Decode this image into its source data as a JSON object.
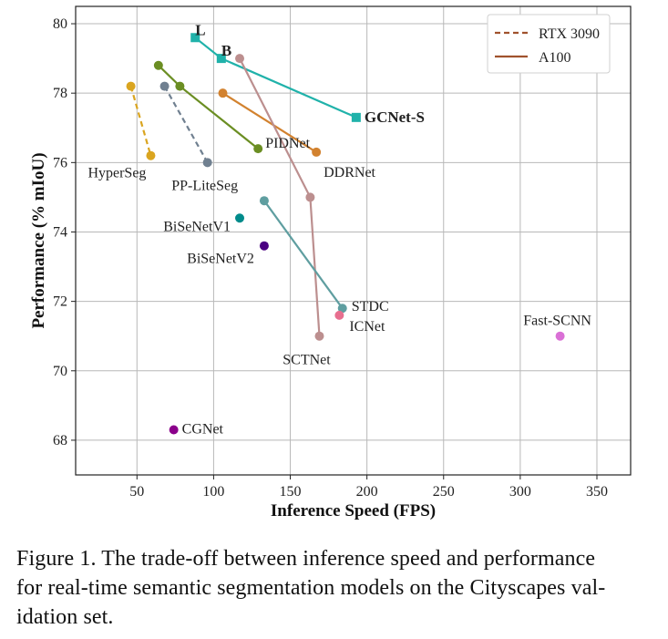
{
  "chart_data": {
    "type": "scatter",
    "title": "",
    "xlabel": "Inference Speed (FPS)",
    "ylabel": "Performance (% mIoU)",
    "xlim": [
      10,
      372
    ],
    "ylim": [
      67.0,
      80.5
    ],
    "xticks": [
      50,
      100,
      150,
      200,
      250,
      300,
      350
    ],
    "yticks": [
      68,
      70,
      72,
      74,
      76,
      78,
      80
    ],
    "grid": true,
    "legend": {
      "position": "top-right",
      "entries": [
        {
          "label": "RTX 3090",
          "style": "dashed",
          "color": "#a0522d"
        },
        {
          "label": "A100",
          "style": "solid",
          "color": "#a0522d"
        }
      ]
    },
    "series": [
      {
        "name": "GCNet",
        "color": "#20b2aa",
        "style": "solid",
        "marker": "square",
        "points": [
          {
            "x": 88,
            "y": 79.6,
            "label": "L",
            "bold": true
          },
          {
            "x": 105,
            "y": 79.0,
            "label": "B",
            "bold": true
          },
          {
            "x": 193,
            "y": 77.3,
            "label": "GCNet-S",
            "bold": true
          }
        ]
      },
      {
        "name": "DDRNet",
        "color": "#d2822f",
        "style": "solid",
        "marker": "circle",
        "points": [
          {
            "x": 106,
            "y": 78.0,
            "label": ""
          },
          {
            "x": 167,
            "y": 76.3,
            "label": "DDRNet"
          }
        ]
      },
      {
        "name": "PIDNet",
        "color": "#6b8e23",
        "style": "solid",
        "marker": "circle",
        "points": [
          {
            "x": 64,
            "y": 78.8,
            "label": ""
          },
          {
            "x": 78,
            "y": 78.2,
            "label": ""
          },
          {
            "x": 129,
            "y": 76.4,
            "label": "PIDNet"
          }
        ]
      },
      {
        "name": "SCTNet",
        "color": "#bc8f8f",
        "style": "solid",
        "marker": "circle",
        "points": [
          {
            "x": 117,
            "y": 79.0,
            "label": ""
          },
          {
            "x": 163,
            "y": 75.0,
            "label": ""
          },
          {
            "x": 169,
            "y": 71.0,
            "label": "SCTNet"
          }
        ]
      },
      {
        "name": "STDC",
        "color": "#5f9ea0",
        "style": "solid",
        "marker": "circle",
        "points": [
          {
            "x": 133,
            "y": 74.9,
            "label": ""
          },
          {
            "x": 184,
            "y": 71.8,
            "label": "STDC"
          }
        ]
      },
      {
        "name": "PP-LiteSeg",
        "color": "#708090",
        "style": "dashed",
        "marker": "circle",
        "points": [
          {
            "x": 68,
            "y": 78.2,
            "label": ""
          },
          {
            "x": 96,
            "y": 76.0,
            "label": "PP-LiteSeg"
          }
        ]
      },
      {
        "name": "HyperSeg",
        "color": "#daa520",
        "style": "dashed",
        "marker": "circle",
        "points": [
          {
            "x": 46,
            "y": 78.2,
            "label": ""
          },
          {
            "x": 59,
            "y": 76.2,
            "label": "HyperSeg"
          }
        ]
      },
      {
        "name": "BiSeNetV1",
        "color": "#008b8b",
        "style": "none",
        "marker": "circle",
        "points": [
          {
            "x": 117,
            "y": 74.4,
            "label": "BiSeNetV1"
          }
        ]
      },
      {
        "name": "BiSeNetV2",
        "color": "#4b0082",
        "style": "none",
        "marker": "circle",
        "points": [
          {
            "x": 133,
            "y": 73.6,
            "label": "BiSeNetV2"
          }
        ]
      },
      {
        "name": "ICNet",
        "color": "#e76f8f",
        "style": "none",
        "marker": "circle",
        "points": [
          {
            "x": 182,
            "y": 71.6,
            "label": "ICNet"
          }
        ]
      },
      {
        "name": "Fast-SCNN",
        "color": "#da70d6",
        "style": "none",
        "marker": "circle",
        "points": [
          {
            "x": 326,
            "y": 71.0,
            "label": "Fast-SCNN"
          }
        ]
      },
      {
        "name": "CGNet",
        "color": "#8b008b",
        "style": "none",
        "marker": "circle",
        "points": [
          {
            "x": 74,
            "y": 68.3,
            "label": "CGNet"
          }
        ]
      }
    ]
  },
  "caption": {
    "lines": [
      "Figure 1. The trade-off between inference speed and performance",
      "for real-time semantic segmentation models on the Cityscapes val-",
      "idation set."
    ]
  }
}
